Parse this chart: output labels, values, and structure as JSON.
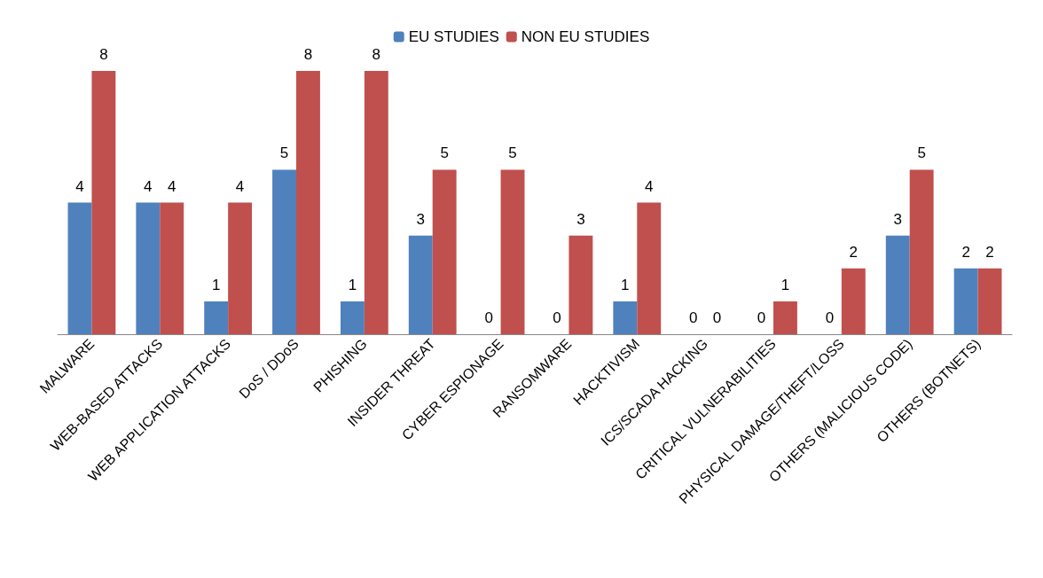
{
  "chart_data": {
    "type": "bar",
    "categories": [
      "MALWARE",
      "WEB-BASED ATTACKS",
      "WEB APPLICATION ATTACKS",
      "DoS / DDoS",
      "PHISHING",
      "INSIDER THREAT",
      "CYBER ESPIONAGE",
      "RANSOMWARE",
      "HACKTIVISM",
      "ICS/SCADA HACKING",
      "CRITICAL VULNERABILITIES",
      "PHYSICAL DAMAGE/THEFT/LOSS",
      "OTHERS (MALICIOUS CODE)",
      "OTHERS (BOTNETS)"
    ],
    "series": [
      {
        "name": "EU STUDIES",
        "color": "#4f81bd",
        "values": [
          4,
          4,
          1,
          5,
          1,
          3,
          0,
          0,
          1,
          0,
          0,
          0,
          3,
          2
        ]
      },
      {
        "name": "NON EU STUDIES",
        "color": "#c0504d",
        "values": [
          8,
          4,
          4,
          8,
          8,
          5,
          5,
          3,
          4,
          0,
          1,
          2,
          5,
          2
        ]
      }
    ],
    "data_labels": true,
    "legend": "top"
  }
}
